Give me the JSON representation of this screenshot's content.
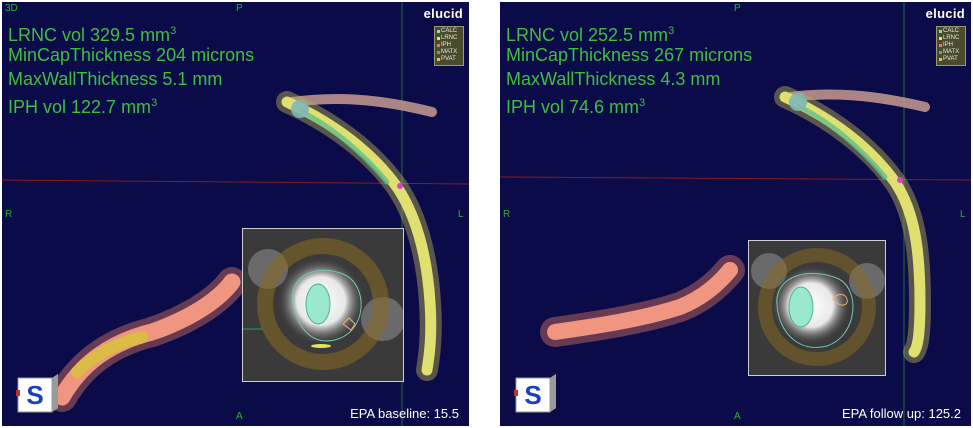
{
  "panels": [
    {
      "metrics": {
        "lrnc_label": "LRNC vol 329.5 mm",
        "min_cap": "MinCapThickness 204 microns",
        "max_wall": "MaxWallThickness 5.1 mm",
        "iph_label": "IPH vol 122.7 mm"
      },
      "epa_label": "EPA baseline: 15.5"
    },
    {
      "metrics": {
        "lrnc_label": "LRNC vol 252.5 mm",
        "min_cap": "MinCapThickness 267 microns",
        "max_wall": "MaxWallThickness 4.3 mm",
        "iph_label": "IPH vol 74.6 mm"
      },
      "epa_label": "EPA follow up: 125.2"
    }
  ],
  "unit_exponent": "3",
  "orientation": {
    "view": "3D",
    "top": "P",
    "left": "R",
    "right": "L",
    "bottom": "A"
  },
  "brand": "elucid",
  "legend": [
    {
      "label": "CALC",
      "color": "#7fd9d9"
    },
    {
      "label": "LRNC",
      "color": "#e6e64d"
    },
    {
      "label": "IPH",
      "color": "#e07a7a"
    },
    {
      "label": "MATX",
      "color": "#6a8fd6"
    },
    {
      "label": "PVAT",
      "color": "#e0c060"
    }
  ],
  "cube_letter": "S",
  "colors": {
    "background": "#0b0b4a",
    "metric_text": "#3fbf3f",
    "axis_line_horizontal": "#8a1a1a",
    "axis_line_vertical": "#1e6e3a",
    "vessel_yellow": "#d8d860",
    "vessel_pink": "#e88a7a",
    "cube_letter": "#1a3fc0"
  }
}
